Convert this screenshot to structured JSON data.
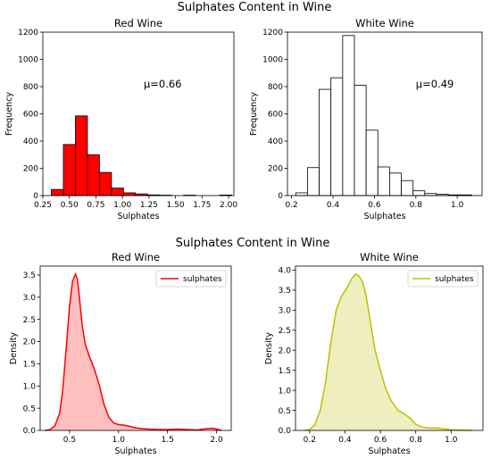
{
  "figure_titles": [
    "Sulphates Content in Wine",
    "Sulphates Content in Wine"
  ],
  "chart_data": [
    {
      "type": "histogram",
      "title": "Red Wine",
      "xlabel": "Sulphates",
      "ylabel": "Frequency",
      "xlim": [
        0.25,
        2.05
      ],
      "ylim": [
        0,
        1200
      ],
      "xticks": [
        0.25,
        0.5,
        0.75,
        1.0,
        1.25,
        1.5,
        1.75,
        2.0
      ],
      "xtick_labels": [
        "0.25",
        "0.50",
        "0.75",
        "1.00",
        "1.25",
        "1.50",
        "1.75",
        "2.00"
      ],
      "yticks": [
        0,
        200,
        400,
        600,
        800,
        1000,
        1200
      ],
      "bin_edges": [
        0.33,
        0.4433,
        0.5567,
        0.67,
        0.7833,
        0.8967,
        1.01,
        1.1233,
        1.2367,
        1.35,
        1.4633,
        1.5767,
        1.69,
        1.8033,
        1.9167,
        2.03
      ],
      "counts": [
        45,
        375,
        585,
        300,
        170,
        55,
        20,
        12,
        5,
        3,
        0,
        3,
        0,
        0,
        4
      ],
      "fill": "#ff0000",
      "annotation": "μ=0.66",
      "annotation_at": [
        1.2,
        820
      ]
    },
    {
      "type": "histogram",
      "title": "White Wine",
      "xlabel": "Sulphates",
      "ylabel": "Frequency",
      "xlim": [
        0.18,
        1.12
      ],
      "ylim": [
        0,
        1200
      ],
      "xticks": [
        0.2,
        0.4,
        0.6,
        0.8,
        1.0
      ],
      "xtick_labels": [
        "0.2",
        "0.4",
        "0.6",
        "0.8",
        "1.0"
      ],
      "yticks": [
        0,
        200,
        400,
        600,
        800,
        1000,
        1200
      ],
      "bin_edges": [
        0.22,
        0.2767,
        0.3333,
        0.39,
        0.4467,
        0.5033,
        0.56,
        0.6167,
        0.6733,
        0.73,
        0.7867,
        0.8433,
        0.9,
        0.9567,
        1.0133,
        1.07
      ],
      "counts": [
        20,
        205,
        780,
        865,
        1175,
        810,
        480,
        210,
        165,
        110,
        35,
        15,
        10,
        5,
        5
      ],
      "fill": "#ffffff",
      "annotation": "μ=0.49",
      "annotation_at": [
        0.8,
        820
      ]
    },
    {
      "type": "area",
      "title": "Red Wine",
      "xlabel": "Sulphates",
      "ylabel": "Density",
      "xlim": [
        0.2,
        2.15
      ],
      "ylim": [
        0,
        3.7
      ],
      "xticks": [
        0.5,
        1.0,
        1.5,
        2.0
      ],
      "xtick_labels": [
        "0.5",
        "1.0",
        "1.5",
        "2.0"
      ],
      "yticks": [
        0,
        0.5,
        1.0,
        1.5,
        2.0,
        2.5,
        3.0,
        3.5
      ],
      "ytick_labels": [
        "0.0",
        "0.5",
        "1.0",
        "1.5",
        "2.0",
        "2.5",
        "3.0",
        "3.5"
      ],
      "series": [
        {
          "name": "sulphates",
          "color": "#ff0000",
          "fill": "#ffbfbf",
          "x": [
            0.25,
            0.3,
            0.35,
            0.4,
            0.43,
            0.46,
            0.5,
            0.53,
            0.56,
            0.58,
            0.6,
            0.63,
            0.66,
            0.7,
            0.75,
            0.8,
            0.85,
            0.9,
            0.95,
            1.0,
            1.05,
            1.1,
            1.15,
            1.2,
            1.3,
            1.4,
            1.5,
            1.6,
            1.7,
            1.8,
            1.9,
            1.95,
            2.0,
            2.05
          ],
          "y": [
            0.0,
            0.02,
            0.1,
            0.4,
            0.9,
            1.7,
            2.8,
            3.35,
            3.52,
            3.4,
            3.0,
            2.35,
            1.95,
            1.68,
            1.4,
            1.05,
            0.6,
            0.3,
            0.17,
            0.13,
            0.12,
            0.1,
            0.07,
            0.05,
            0.03,
            0.02,
            0.02,
            0.03,
            0.02,
            0.01,
            0.04,
            0.05,
            0.03,
            0.0
          ]
        }
      ],
      "legend": "top-right"
    },
    {
      "type": "area",
      "title": "White Wine",
      "xlabel": "Sulphates",
      "ylabel": "Density",
      "xlim": [
        0.12,
        1.18
      ],
      "ylim": [
        0,
        4.1
      ],
      "xticks": [
        0.2,
        0.4,
        0.6,
        0.8,
        1.0
      ],
      "xtick_labels": [
        "0.2",
        "0.4",
        "0.6",
        "0.8",
        "1.0"
      ],
      "yticks": [
        0,
        0.5,
        1.0,
        1.5,
        2.0,
        2.5,
        3.0,
        3.5,
        4.0
      ],
      "ytick_labels": [
        "0.0",
        "0.5",
        "1.0",
        "1.5",
        "2.0",
        "2.5",
        "3.0",
        "3.5",
        "4.0"
      ],
      "series": [
        {
          "name": "sulphates",
          "color": "#bfbf00",
          "fill": "#eeeebf",
          "x": [
            0.17,
            0.2,
            0.23,
            0.26,
            0.29,
            0.32,
            0.35,
            0.38,
            0.41,
            0.44,
            0.46,
            0.48,
            0.5,
            0.52,
            0.54,
            0.57,
            0.6,
            0.63,
            0.66,
            0.7,
            0.74,
            0.77,
            0.8,
            0.84,
            0.88,
            0.92,
            0.96,
            1.0,
            1.05,
            1.1,
            1.12
          ],
          "y": [
            0.0,
            0.02,
            0.15,
            0.5,
            1.2,
            2.2,
            3.0,
            3.35,
            3.55,
            3.8,
            3.9,
            3.85,
            3.7,
            3.35,
            2.8,
            2.0,
            1.5,
            1.05,
            0.75,
            0.5,
            0.4,
            0.3,
            0.15,
            0.08,
            0.06,
            0.06,
            0.04,
            0.02,
            0.01,
            0.0,
            0.0
          ]
        }
      ],
      "legend": "top-right"
    }
  ]
}
